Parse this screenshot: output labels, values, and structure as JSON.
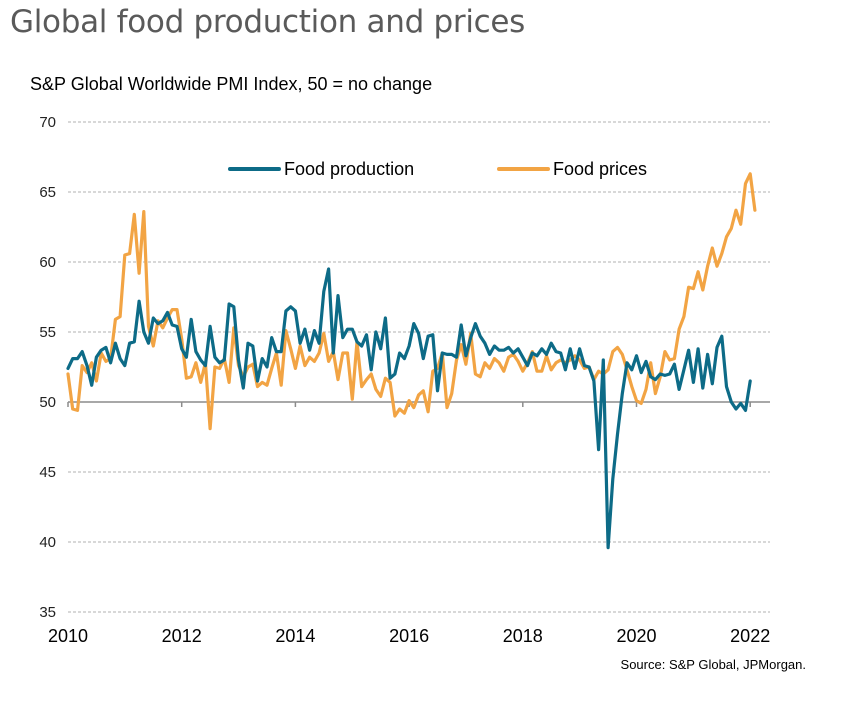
{
  "title": "Global food production and prices",
  "source": "Source: S&P Global, JPMorgan.",
  "colors": {
    "production": "#0d6b87",
    "prices": "#f2a444",
    "grid": "#b0b0b0",
    "axis": "#8c8c8c"
  },
  "chart_data": {
    "type": "line",
    "title": "Global food production and prices",
    "subtitle": "S&P Global Worldwide PMI Index, 50 =  no change",
    "xlabel": "",
    "ylabel": "",
    "ylim": [
      35,
      70
    ],
    "yticks": [
      35,
      40,
      45,
      50,
      55,
      60,
      65,
      70
    ],
    "xlim": [
      "2010-01",
      "2022-05"
    ],
    "xticks": [
      "2010",
      "2012",
      "2014",
      "2016",
      "2018",
      "2020",
      "2022"
    ],
    "grid": true,
    "baseline": 50,
    "legend_position": "top-center",
    "frequency": "monthly",
    "start": "2010-01",
    "series": [
      {
        "name": "Food production",
        "values": [
          52.4,
          53.1,
          53.1,
          53.6,
          52.6,
          51.2,
          53.2,
          53.7,
          53.9,
          52.8,
          54.2,
          53.1,
          52.6,
          54.2,
          54.3,
          57.2,
          55.0,
          54.2,
          56.0,
          55.6,
          55.8,
          56.4,
          55.5,
          55.4,
          53.8,
          53.2,
          55.9,
          53.6,
          53.0,
          52.6,
          55.4,
          53.2,
          52.8,
          53.0,
          57.0,
          56.8,
          53.0,
          51.0,
          54.2,
          54.0,
          51.5,
          53.1,
          52.5,
          54.6,
          53.6,
          53.6,
          56.5,
          56.8,
          56.5,
          54.2,
          55.2,
          53.7,
          55.1,
          54.2,
          57.9,
          59.5,
          53.5,
          57.6,
          54.6,
          55.2,
          55.2,
          54.3,
          54.0,
          54.8,
          52.3,
          55.0,
          53.8,
          56.0,
          51.7,
          52.0,
          53.5,
          53.1,
          54.0,
          55.6,
          54.9,
          53.1,
          54.7,
          54.8,
          50.8,
          53.5,
          53.4,
          53.4,
          53.2,
          55.5,
          53.3,
          54.6,
          55.6,
          54.7,
          54.2,
          53.4,
          54.0,
          53.7,
          53.7,
          53.9,
          53.5,
          53.8,
          53.2,
          52.6,
          53.5,
          53.3,
          53.8,
          53.4,
          54.2,
          53.6,
          53.5,
          52.3,
          53.8,
          52.4,
          53.8,
          52.6,
          52.5,
          51.5,
          46.6,
          53.0,
          39.6,
          44.5,
          47.7,
          50.6,
          52.8,
          52.3,
          53.3,
          52.1,
          52.9,
          51.8,
          51.6,
          52.0,
          51.9,
          52.0,
          52.7,
          50.9,
          52.3,
          53.7,
          51.4,
          53.8,
          51.0,
          53.4,
          51.3,
          53.9,
          54.7,
          51.1,
          50.0,
          49.5,
          49.9,
          49.4,
          51.5
        ]
      },
      {
        "name": "Food prices",
        "values": [
          52.0,
          49.5,
          49.4,
          52.6,
          52.1,
          52.8,
          51.5,
          53.5,
          52.9,
          53.1,
          55.9,
          56.1,
          60.5,
          60.6,
          63.4,
          59.2,
          63.6,
          55.4,
          54.0,
          55.8,
          55.3,
          56.0,
          56.6,
          56.6,
          54.5,
          51.7,
          51.8,
          52.8,
          51.4,
          52.8,
          48.1,
          52.5,
          52.4,
          53.1,
          51.4,
          55.3,
          52.6,
          51.8,
          52.5,
          52.7,
          51.1,
          51.4,
          51.2,
          52.4,
          53.5,
          51.2,
          55.1,
          53.8,
          52.4,
          54.0,
          52.6,
          53.2,
          52.9,
          53.5,
          54.9,
          52.9,
          53.6,
          51.6,
          53.5,
          53.5,
          50.2,
          54.3,
          51.1,
          51.6,
          52.0,
          50.9,
          50.4,
          51.7,
          51.4,
          49.0,
          49.5,
          49.2,
          50.1,
          49.6,
          50.5,
          50.8,
          49.3,
          52.2,
          52.4,
          53.5,
          49.6,
          50.6,
          53.0,
          54.1,
          52.7,
          54.9,
          52.0,
          51.8,
          52.8,
          52.4,
          53.1,
          52.8,
          52.2,
          53.2,
          53.4,
          52.9,
          52.2,
          52.8,
          53.6,
          52.2,
          52.2,
          53.3,
          52.3,
          52.8,
          53.0,
          52.8,
          53.0,
          53.3,
          53.0,
          52.4,
          52.5,
          51.6,
          52.2,
          52.0,
          52.3,
          53.6,
          53.9,
          53.4,
          52.3,
          51.1,
          50.1,
          49.9,
          50.9,
          52.8,
          50.6,
          51.8,
          53.6,
          53.0,
          53.1,
          55.2,
          56.1,
          58.2,
          58.1,
          59.3,
          58.0,
          59.7,
          61.0,
          59.7,
          60.6,
          61.8,
          62.4,
          63.7,
          62.7,
          65.6,
          66.3,
          63.7
        ]
      }
    ]
  }
}
